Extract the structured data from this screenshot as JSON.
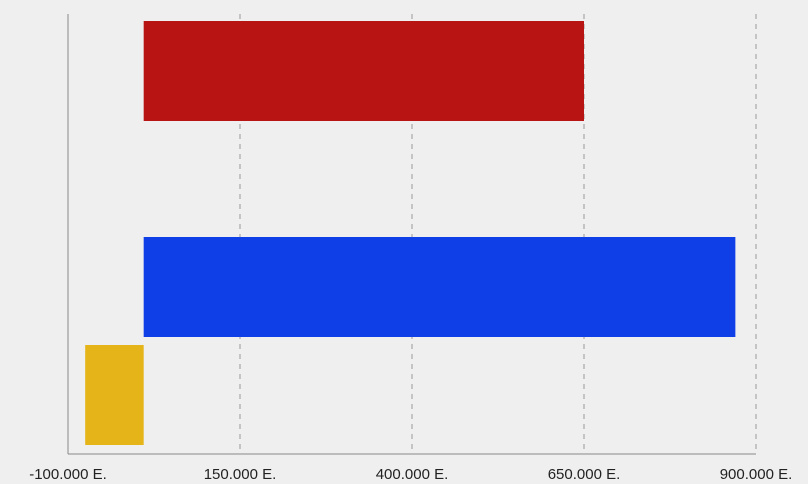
{
  "chart_data": {
    "type": "bar",
    "orientation": "horizontal",
    "title": "",
    "xlabel": "",
    "ylabel": "",
    "xlim": [
      -100000,
      900000
    ],
    "x_ticks": [
      -100000,
      150000,
      400000,
      650000,
      900000
    ],
    "x_tick_labels": [
      "-100.000 E.",
      "150.000 E.",
      "400.000 E.",
      "650.000 E.",
      "900.000 E."
    ],
    "grid": "vertical dashed",
    "legend": "none",
    "bars": [
      {
        "start": 10000,
        "end": 650000,
        "color": "#b81414"
      },
      {
        "start": 10000,
        "end": 870000,
        "color": "#0f3fe6"
      },
      {
        "start": -75000,
        "end": 10000,
        "color": "#e5b418"
      }
    ]
  }
}
